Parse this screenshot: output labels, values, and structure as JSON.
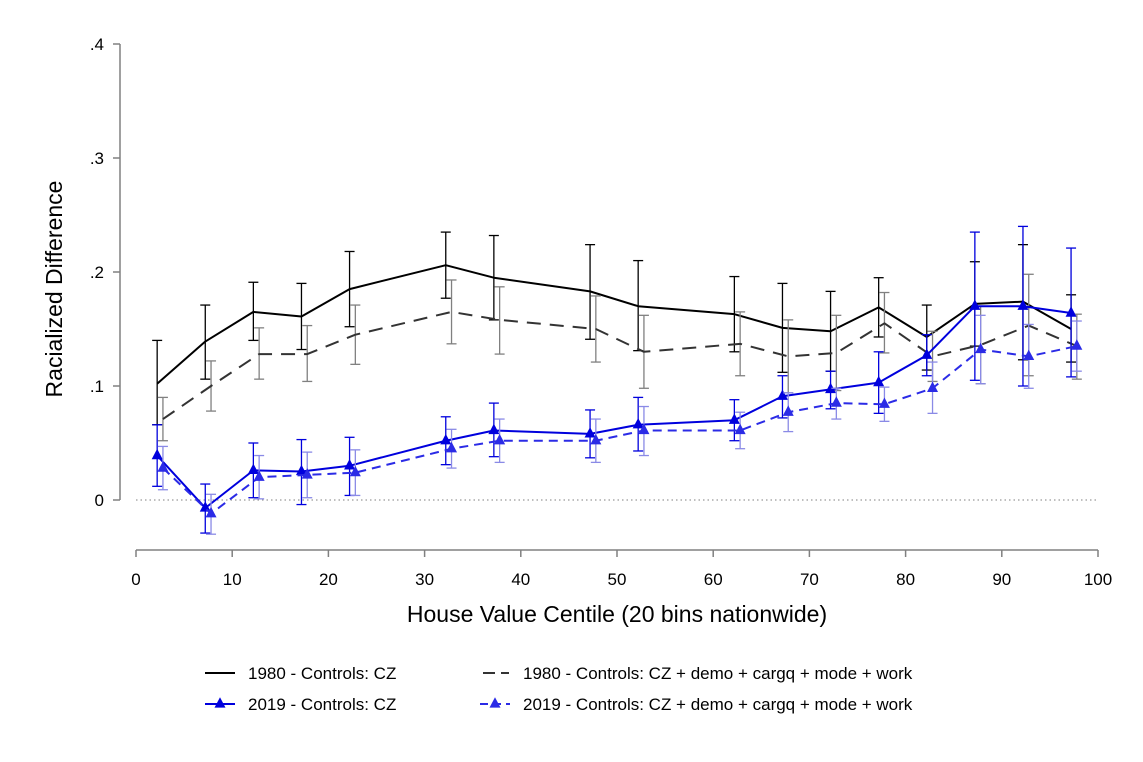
{
  "chart_data": {
    "type": "line",
    "title": "",
    "xlabel": "House Value Centile (20 bins nationwide)",
    "ylabel": "Racialized Difference",
    "xlim": [
      0,
      100
    ],
    "ylim": [
      -0.04,
      0.4
    ],
    "xticks": [
      0,
      10,
      20,
      30,
      40,
      50,
      60,
      70,
      80,
      90,
      100
    ],
    "xtick_labels": [
      "0",
      "10",
      "20",
      "30",
      "40",
      "50",
      "60",
      "70",
      "80",
      "90",
      "100"
    ],
    "yticks": [
      0,
      0.1,
      0.2,
      0.3,
      0.4
    ],
    "ytick_labels": [
      "0",
      ".1",
      ".2",
      ".3",
      ".4"
    ],
    "reference_line": 0,
    "grid": false,
    "legend_placement": "bottom",
    "series": [
      {
        "name": "1980 - Controls: CZ",
        "color": "#000000",
        "dash": "solid",
        "marker": "none",
        "points": [
          {
            "x": 2.2,
            "y": 0.102,
            "lo": 0.066,
            "hi": 0.14
          },
          {
            "x": 7.2,
            "y": 0.139,
            "lo": 0.106,
            "hi": 0.171
          },
          {
            "x": 12.2,
            "y": 0.165,
            "lo": 0.14,
            "hi": 0.191
          },
          {
            "x": 17.2,
            "y": 0.161,
            "lo": 0.132,
            "hi": 0.19
          },
          {
            "x": 22.2,
            "y": 0.185,
            "lo": 0.152,
            "hi": 0.218
          },
          {
            "x": 32.2,
            "y": 0.206,
            "lo": 0.177,
            "hi": 0.235
          },
          {
            "x": 37.2,
            "y": 0.195,
            "lo": 0.158,
            "hi": 0.232
          },
          {
            "x": 47.2,
            "y": 0.183,
            "lo": 0.141,
            "hi": 0.224
          },
          {
            "x": 52.2,
            "y": 0.17,
            "lo": 0.131,
            "hi": 0.21
          },
          {
            "x": 62.2,
            "y": 0.163,
            "lo": 0.13,
            "hi": 0.196
          },
          {
            "x": 67.2,
            "y": 0.151,
            "lo": 0.112,
            "hi": 0.19
          },
          {
            "x": 72.2,
            "y": 0.148,
            "lo": 0.113,
            "hi": 0.183
          },
          {
            "x": 77.2,
            "y": 0.169,
            "lo": 0.143,
            "hi": 0.195
          },
          {
            "x": 82.2,
            "y": 0.143,
            "lo": 0.114,
            "hi": 0.171
          },
          {
            "x": 87.2,
            "y": 0.172,
            "lo": 0.135,
            "hi": 0.209
          },
          {
            "x": 92.2,
            "y": 0.174,
            "lo": 0.123,
            "hi": 0.224
          },
          {
            "x": 97.2,
            "y": 0.15,
            "lo": 0.121,
            "hi": 0.18
          }
        ]
      },
      {
        "name": "1980 - Controls: CZ + demo + cargq + mode + work",
        "color": "#333333",
        "error_color": "#808080",
        "dash": "long-dash",
        "marker": "none",
        "points": [
          {
            "x": 2.8,
            "y": 0.071,
            "lo": 0.052,
            "hi": 0.09
          },
          {
            "x": 7.8,
            "y": 0.1,
            "lo": 0.078,
            "hi": 0.122
          },
          {
            "x": 12.8,
            "y": 0.128,
            "lo": 0.106,
            "hi": 0.151
          },
          {
            "x": 17.8,
            "y": 0.128,
            "lo": 0.104,
            "hi": 0.153
          },
          {
            "x": 22.8,
            "y": 0.145,
            "lo": 0.119,
            "hi": 0.171
          },
          {
            "x": 32.8,
            "y": 0.165,
            "lo": 0.137,
            "hi": 0.193
          },
          {
            "x": 37.8,
            "y": 0.158,
            "lo": 0.128,
            "hi": 0.187
          },
          {
            "x": 47.8,
            "y": 0.15,
            "lo": 0.121,
            "hi": 0.179
          },
          {
            "x": 52.8,
            "y": 0.13,
            "lo": 0.098,
            "hi": 0.162
          },
          {
            "x": 62.8,
            "y": 0.137,
            "lo": 0.109,
            "hi": 0.165
          },
          {
            "x": 67.8,
            "y": 0.126,
            "lo": 0.094,
            "hi": 0.158
          },
          {
            "x": 72.8,
            "y": 0.129,
            "lo": 0.096,
            "hi": 0.162
          },
          {
            "x": 77.8,
            "y": 0.155,
            "lo": 0.129,
            "hi": 0.182
          },
          {
            "x": 82.8,
            "y": 0.126,
            "lo": 0.104,
            "hi": 0.148
          },
          {
            "x": 87.8,
            "y": 0.136,
            "lo": 0.102,
            "hi": 0.17
          },
          {
            "x": 92.8,
            "y": 0.153,
            "lo": 0.109,
            "hi": 0.198
          },
          {
            "x": 97.8,
            "y": 0.135,
            "lo": 0.106,
            "hi": 0.163
          }
        ]
      },
      {
        "name": "2019 - Controls: CZ",
        "color": "#0000dd",
        "dash": "solid",
        "marker": "triangle",
        "points": [
          {
            "x": 2.2,
            "y": 0.039,
            "lo": 0.012,
            "hi": 0.066
          },
          {
            "x": 7.2,
            "y": -0.007,
            "lo": -0.029,
            "hi": 0.014
          },
          {
            "x": 12.2,
            "y": 0.026,
            "lo": 0.002,
            "hi": 0.05
          },
          {
            "x": 17.2,
            "y": 0.025,
            "lo": -0.004,
            "hi": 0.053
          },
          {
            "x": 22.2,
            "y": 0.03,
            "lo": 0.004,
            "hi": 0.055
          },
          {
            "x": 32.2,
            "y": 0.052,
            "lo": 0.031,
            "hi": 0.073
          },
          {
            "x": 37.2,
            "y": 0.061,
            "lo": 0.038,
            "hi": 0.085
          },
          {
            "x": 47.2,
            "y": 0.058,
            "lo": 0.037,
            "hi": 0.079
          },
          {
            "x": 52.2,
            "y": 0.066,
            "lo": 0.043,
            "hi": 0.09
          },
          {
            "x": 62.2,
            "y": 0.07,
            "lo": 0.052,
            "hi": 0.088
          },
          {
            "x": 67.2,
            "y": 0.091,
            "lo": 0.072,
            "hi": 0.109
          },
          {
            "x": 72.2,
            "y": 0.097,
            "lo": 0.08,
            "hi": 0.113
          },
          {
            "x": 77.2,
            "y": 0.103,
            "lo": 0.076,
            "hi": 0.13
          },
          {
            "x": 82.2,
            "y": 0.127,
            "lo": 0.109,
            "hi": 0.145
          },
          {
            "x": 87.2,
            "y": 0.17,
            "lo": 0.105,
            "hi": 0.235
          },
          {
            "x": 92.2,
            "y": 0.17,
            "lo": 0.1,
            "hi": 0.24
          },
          {
            "x": 97.2,
            "y": 0.164,
            "lo": 0.108,
            "hi": 0.221
          }
        ]
      },
      {
        "name": "2019 - Controls: CZ + demo + cargq + mode + work",
        "color": "#2b2be6",
        "error_color": "#8a8ae6",
        "dash": "dash",
        "marker": "triangle",
        "points": [
          {
            "x": 2.8,
            "y": 0.028,
            "lo": 0.009,
            "hi": 0.047
          },
          {
            "x": 7.8,
            "y": -0.012,
            "lo": -0.03,
            "hi": 0.005
          },
          {
            "x": 12.8,
            "y": 0.02,
            "lo": 0.001,
            "hi": 0.039
          },
          {
            "x": 17.8,
            "y": 0.022,
            "lo": 0.002,
            "hi": 0.042
          },
          {
            "x": 22.8,
            "y": 0.024,
            "lo": 0.004,
            "hi": 0.044
          },
          {
            "x": 32.8,
            "y": 0.045,
            "lo": 0.028,
            "hi": 0.062
          },
          {
            "x": 37.8,
            "y": 0.052,
            "lo": 0.033,
            "hi": 0.071
          },
          {
            "x": 47.8,
            "y": 0.052,
            "lo": 0.033,
            "hi": 0.071
          },
          {
            "x": 52.8,
            "y": 0.061,
            "lo": 0.039,
            "hi": 0.082
          },
          {
            "x": 62.8,
            "y": 0.061,
            "lo": 0.045,
            "hi": 0.077
          },
          {
            "x": 67.8,
            "y": 0.077,
            "lo": 0.06,
            "hi": 0.094
          },
          {
            "x": 72.8,
            "y": 0.085,
            "lo": 0.071,
            "hi": 0.098
          },
          {
            "x": 77.8,
            "y": 0.084,
            "lo": 0.069,
            "hi": 0.099
          },
          {
            "x": 82.8,
            "y": 0.098,
            "lo": 0.076,
            "hi": 0.121
          },
          {
            "x": 87.8,
            "y": 0.132,
            "lo": 0.102,
            "hi": 0.162
          },
          {
            "x": 92.8,
            "y": 0.126,
            "lo": 0.098,
            "hi": 0.154
          },
          {
            "x": 97.8,
            "y": 0.135,
            "lo": 0.113,
            "hi": 0.157
          }
        ]
      }
    ]
  }
}
